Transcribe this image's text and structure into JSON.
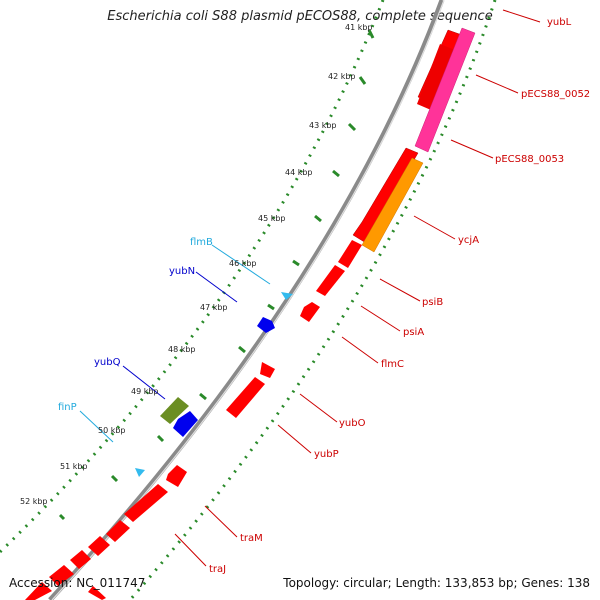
{
  "title": "Escherichia coli S88 plasmid pECOS88, complete sequence",
  "accession": "Accession: NC_011747",
  "summary": "Topology: circular; Length: 133,853 bp; Genes: 138",
  "colors": {
    "backbone": "#8a8a8a",
    "tick_dots": "#2a8a2a",
    "forward_gene": "#ff0000",
    "reverse_gene": "#0000ee",
    "pink_gene": "#ff3399",
    "orange_gene": "#ff9900",
    "olive_gene": "#6b8e23",
    "cyan_feature": "#33bbee",
    "forward_label": "#cc0000",
    "reverse_label": "#0000cc",
    "cyan_label": "#22aadd"
  },
  "kbp_ticks": [
    "41 kbp",
    "42 kbp",
    "43 kbp",
    "44 kbp",
    "45 kbp",
    "46 kbp",
    "47 kbp",
    "48 kbp",
    "49 kbp",
    "50 kbp",
    "51 kbp",
    "52 kbp"
  ],
  "gene_labels": {
    "yubL": "yubL",
    "pECS88_0052": "pECS88_0052",
    "pECS88_0053": "pECS88_0053",
    "ycjA": "ycjA",
    "psiB": "psiB",
    "psiA": "psiA",
    "flmC": "flmC",
    "yubO": "yubO",
    "yubP": "yubP",
    "traM": "traM",
    "traJ": "traJ",
    "flmB": "flmB",
    "yubN": "yubN",
    "yubQ": "yubQ",
    "finP": "finP"
  }
}
